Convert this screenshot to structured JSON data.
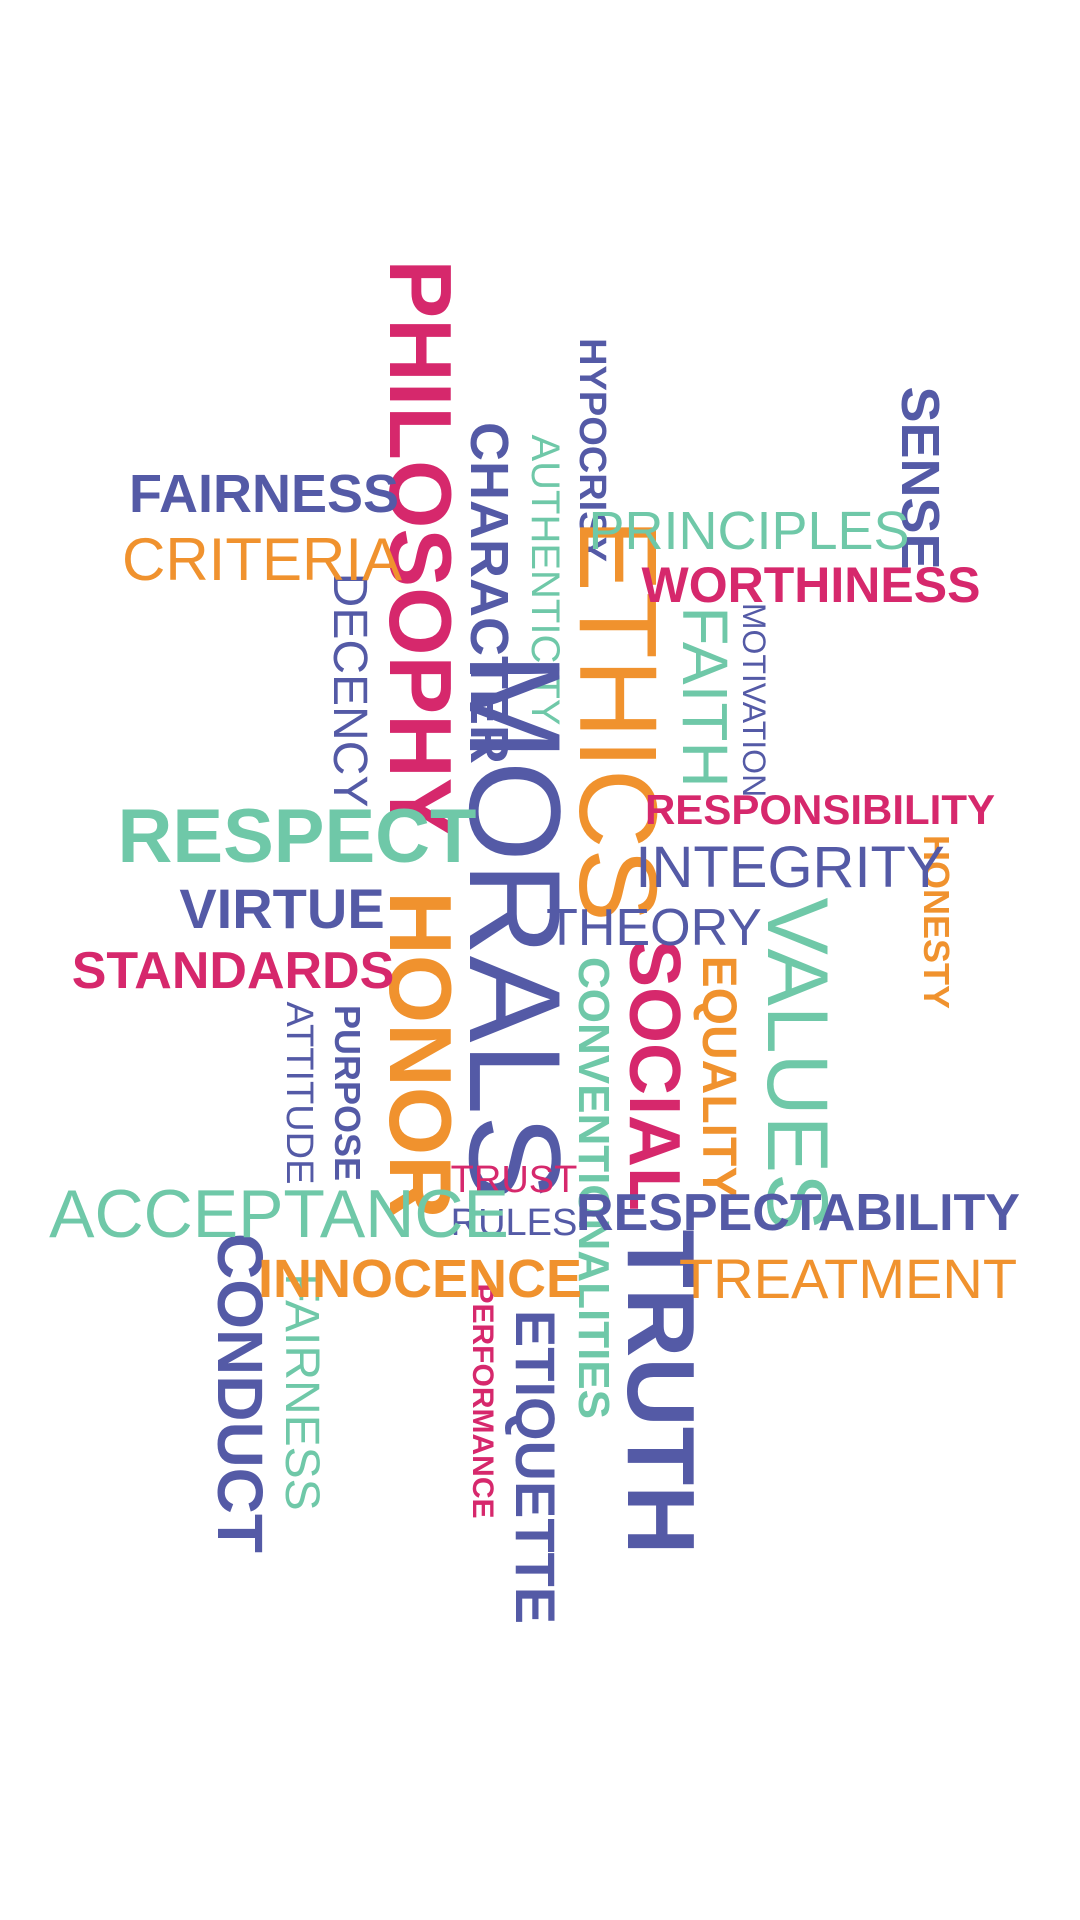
{
  "colors": {
    "indigo": "#545aa6",
    "crimson": "#d6286c",
    "orange": "#f0922e",
    "mint": "#6fc8a8",
    "background": "#ffffff"
  },
  "words": [
    {
      "id": "philosophy",
      "text": "PHILOSOPHY",
      "color": "crimson"
    },
    {
      "id": "hypocrisy",
      "text": "HYPOCRISY",
      "color": "indigo"
    },
    {
      "id": "sense",
      "text": "SENSE",
      "color": "indigo"
    },
    {
      "id": "fairness-top",
      "text": "FAIRNESS",
      "color": "indigo"
    },
    {
      "id": "criteria",
      "text": "CRITERIA",
      "color": "orange"
    },
    {
      "id": "authenticity",
      "text": "AUTHENTICITY",
      "color": "mint"
    },
    {
      "id": "character",
      "text": "CHARACTER",
      "color": "indigo"
    },
    {
      "id": "principles",
      "text": "PRINCIPLES",
      "color": "mint"
    },
    {
      "id": "worthiness",
      "text": "WORTHINESS",
      "color": "crimson"
    },
    {
      "id": "ethics",
      "text": "ETHICS",
      "color": "orange"
    },
    {
      "id": "faith",
      "text": "FAITH",
      "color": "mint"
    },
    {
      "id": "motivation",
      "text": "MOTIVATION",
      "color": "indigo"
    },
    {
      "id": "decency",
      "text": "DECENCY",
      "color": "indigo"
    },
    {
      "id": "morals",
      "text": "MORALS",
      "color": "indigo"
    },
    {
      "id": "respect",
      "text": "RESPECT",
      "color": "mint"
    },
    {
      "id": "responsibility",
      "text": "RESPONSIBILITY",
      "color": "crimson"
    },
    {
      "id": "integrity",
      "text": "INTEGRITY",
      "color": "indigo"
    },
    {
      "id": "honesty",
      "text": "HONESTY",
      "color": "orange"
    },
    {
      "id": "virtue",
      "text": "VIRTUE",
      "color": "indigo"
    },
    {
      "id": "honor",
      "text": "HONOR",
      "color": "orange"
    },
    {
      "id": "theory",
      "text": "THEORY",
      "color": "indigo"
    },
    {
      "id": "values",
      "text": "VALUES",
      "color": "mint"
    },
    {
      "id": "standards",
      "text": "STANDARDS",
      "color": "crimson"
    },
    {
      "id": "social",
      "text": "SOCIAL",
      "color": "crimson"
    },
    {
      "id": "equality",
      "text": "EQUALITY",
      "color": "orange"
    },
    {
      "id": "conventionalities",
      "text": "CONVENTIONALITIES",
      "color": "mint"
    },
    {
      "id": "purpose",
      "text": "PURPOSE",
      "color": "indigo"
    },
    {
      "id": "attitude",
      "text": "ATTITUDE",
      "color": "indigo"
    },
    {
      "id": "trust",
      "text": "TRUST",
      "color": "crimson"
    },
    {
      "id": "rules",
      "text": "RULES",
      "color": "indigo"
    },
    {
      "id": "acceptance",
      "text": "ACCEPTANCE",
      "color": "mint"
    },
    {
      "id": "respectability",
      "text": "RESPECTABILITY",
      "color": "indigo"
    },
    {
      "id": "innocence",
      "text": "INNOCENCE",
      "color": "orange"
    },
    {
      "id": "treatment",
      "text": "TREATMENT",
      "color": "orange"
    },
    {
      "id": "conduct",
      "text": "CONDUCT",
      "color": "indigo"
    },
    {
      "id": "fairness-bottom",
      "text": "FAIRNESS",
      "color": "mint"
    },
    {
      "id": "performance",
      "text": "PERFORMANCE",
      "color": "crimson"
    },
    {
      "id": "etiquette",
      "text": "ETIQUETTE",
      "color": "indigo"
    },
    {
      "id": "truth",
      "text": "TRUTH",
      "color": "indigo"
    }
  ]
}
